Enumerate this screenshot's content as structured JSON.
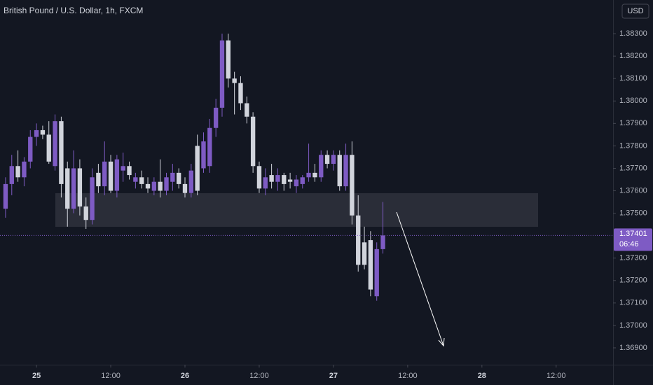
{
  "chart_data": {
    "type": "candlestick",
    "title": "British Pound / U.S. Dollar, 1h, FXCM",
    "currency": "USD",
    "up_color": "#7e5bc4",
    "down_color": "#d1d4dc",
    "x": [
      -5,
      -4,
      -3,
      -2,
      -1,
      0,
      1,
      2,
      3,
      4,
      5,
      6,
      7,
      8,
      9,
      10,
      11,
      12,
      13,
      14,
      15,
      16,
      17,
      18,
      19,
      20,
      21,
      22,
      23,
      24,
      25,
      26,
      27,
      28,
      29,
      30,
      31,
      32,
      33,
      34,
      35,
      36,
      37,
      38,
      39,
      40,
      41,
      42,
      43,
      44,
      45,
      46,
      47,
      48,
      49,
      50,
      51,
      52,
      53,
      54,
      55,
      56
    ],
    "open": [
      1.3752,
      1.3763,
      1.3771,
      1.3766,
      1.3773,
      1.3784,
      1.3787,
      1.3785,
      1.3771,
      1.3791,
      1.377,
      1.3752,
      1.377,
      1.3753,
      1.3747,
      1.3768,
      1.3762,
      1.3773,
      1.376,
      1.3769,
      1.3771,
      1.3764,
      1.3766,
      1.3763,
      1.376,
      1.3764,
      1.376,
      1.3764,
      1.3768,
      1.3763,
      1.3759,
      1.378,
      1.377,
      1.3771,
      1.3788,
      1.3797,
      1.3827,
      1.381,
      1.3808,
      1.3799,
      1.3793,
      1.3771,
      1.3761,
      1.3767,
      1.3764,
      1.3767,
      1.3765,
      1.3762,
      1.3763,
      1.3766,
      1.3768,
      1.3766,
      1.3776,
      1.3772,
      1.3776,
      1.3762,
      1.3776,
      1.3749,
      1.3737,
      1.3738,
      1.3713,
      1.3734
    ],
    "high": [
      1.3766,
      1.3776,
      1.3778,
      1.3775,
      1.3787,
      1.379,
      1.3789,
      1.3791,
      1.3794,
      1.3793,
      1.3773,
      1.3778,
      1.3774,
      1.3757,
      1.377,
      1.3772,
      1.3782,
      1.3776,
      1.3776,
      1.3777,
      1.3773,
      1.3768,
      1.3769,
      1.3766,
      1.3766,
      1.3774,
      1.3768,
      1.3772,
      1.377,
      1.3766,
      1.3772,
      1.3785,
      1.3786,
      1.3792,
      1.3801,
      1.383,
      1.383,
      1.3813,
      1.3811,
      1.3802,
      1.3795,
      1.3773,
      1.377,
      1.3772,
      1.377,
      1.3768,
      1.3768,
      1.3767,
      1.3767,
      1.3781,
      1.3772,
      1.3778,
      1.3778,
      1.3778,
      1.3778,
      1.3781,
      1.3782,
      1.3758,
      1.3744,
      1.3742,
      1.3737,
      1.3755
    ],
    "low": [
      1.3748,
      1.3758,
      1.3764,
      1.3762,
      1.377,
      1.378,
      1.3783,
      1.3772,
      1.3769,
      1.3757,
      1.3744,
      1.375,
      1.3749,
      1.3743,
      1.3745,
      1.3759,
      1.3758,
      1.3759,
      1.3757,
      1.3764,
      1.3765,
      1.3761,
      1.3761,
      1.3759,
      1.3758,
      1.3757,
      1.3758,
      1.376,
      1.3761,
      1.3757,
      1.3757,
      1.3758,
      1.3768,
      1.3768,
      1.3784,
      1.3793,
      1.3806,
      1.3794,
      1.3796,
      1.379,
      1.3768,
      1.3759,
      1.3758,
      1.3761,
      1.376,
      1.376,
      1.3761,
      1.3759,
      1.3761,
      1.3764,
      1.3764,
      1.3764,
      1.377,
      1.3769,
      1.376,
      1.376,
      1.3745,
      1.3724,
      1.3725,
      1.3713,
      1.3711,
      1.3732
    ],
    "close": [
      1.3763,
      1.3771,
      1.3766,
      1.3773,
      1.3784,
      1.3787,
      1.3785,
      1.3773,
      1.3791,
      1.3763,
      1.3752,
      1.377,
      1.3753,
      1.3747,
      1.3766,
      1.3762,
      1.3773,
      1.376,
      1.3774,
      1.3771,
      1.3767,
      1.3766,
      1.3763,
      1.3761,
      1.3764,
      1.376,
      1.3766,
      1.3768,
      1.3763,
      1.3759,
      1.3769,
      1.376,
      1.3782,
      1.3788,
      1.3797,
      1.3827,
      1.381,
      1.3808,
      1.3799,
      1.3793,
      1.3771,
      1.3761,
      1.3766,
      1.3764,
      1.3767,
      1.3763,
      1.3764,
      1.3765,
      1.3766,
      1.3768,
      1.3766,
      1.3776,
      1.3772,
      1.3776,
      1.3762,
      1.3776,
      1.3749,
      1.3727,
      1.3727,
      1.3716,
      1.3734,
      1.37401
    ],
    "last_price": 1.37401,
    "countdown": "06:46",
    "ylim": [
      1.36825,
      1.3845
    ],
    "yticks": [
      {
        "value": 1.383,
        "label": "1.38300"
      },
      {
        "value": 1.382,
        "label": "1.38200"
      },
      {
        "value": 1.381,
        "label": "1.38100"
      },
      {
        "value": 1.38,
        "label": "1.38000"
      },
      {
        "value": 1.379,
        "label": "1.37900"
      },
      {
        "value": 1.378,
        "label": "1.37800"
      },
      {
        "value": 1.377,
        "label": "1.37700"
      },
      {
        "value": 1.376,
        "label": "1.37600"
      },
      {
        "value": 1.375,
        "label": "1.37500"
      },
      {
        "value": 1.373,
        "label": "1.37300"
      },
      {
        "value": 1.372,
        "label": "1.37200"
      },
      {
        "value": 1.371,
        "label": "1.37100"
      },
      {
        "value": 1.37,
        "label": "1.37000"
      },
      {
        "value": 1.369,
        "label": "1.36900"
      }
    ],
    "xlim": [
      -5.9,
      93.2
    ],
    "xticks": [
      {
        "value": 0,
        "label": "25"
      },
      {
        "value": 12,
        "label": "12:00"
      },
      {
        "value": 24,
        "label": "26"
      },
      {
        "value": 36,
        "label": "12:00"
      },
      {
        "value": 48,
        "label": "27"
      },
      {
        "value": 60,
        "label": "12:00"
      },
      {
        "value": 72,
        "label": "28"
      },
      {
        "value": 84,
        "label": "12:00"
      }
    ]
  }
}
